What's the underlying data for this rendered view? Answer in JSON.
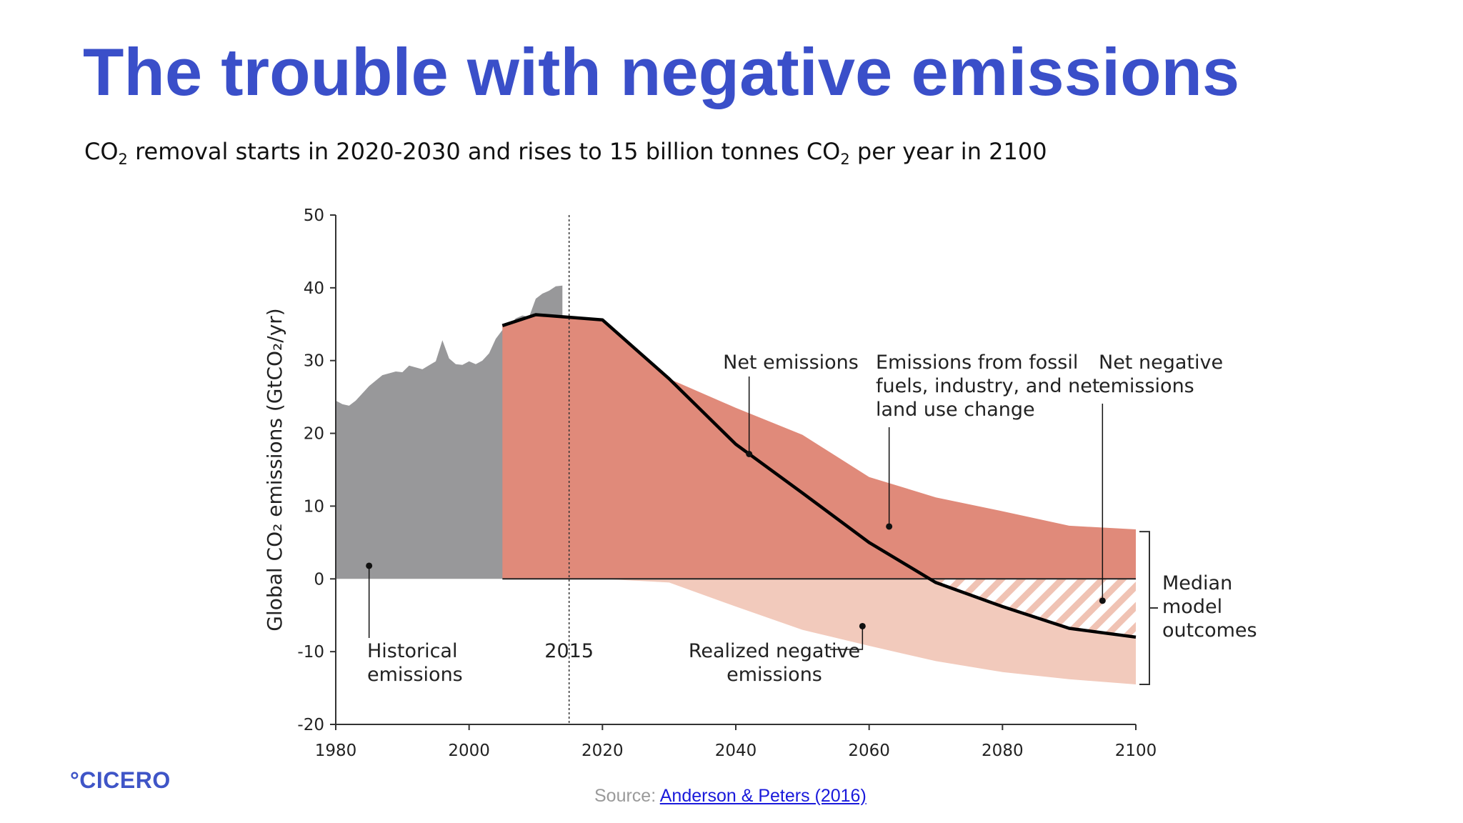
{
  "slide": {
    "title": "The trouble with negative emissions",
    "subtitle": {
      "part1": "CO",
      "sub1": "2",
      "part2": " removal starts in 2020-2030 and rises to 15 billion tonnes CO",
      "sub2": "2",
      "part3": " per year in 2100"
    }
  },
  "chart_data": {
    "type": "area",
    "title": "",
    "ylabel": "Global CO₂ emissions (GtCO₂/yr)",
    "xlabel": "",
    "xlim": [
      1980,
      2100
    ],
    "ylim": [
      -20,
      50
    ],
    "x_ticks": [
      "1980",
      "2000",
      "2020",
      "2040",
      "2060",
      "2080",
      "2100"
    ],
    "y_ticks": [
      "50",
      "40",
      "30",
      "20",
      "10",
      "0",
      "-10",
      "-20"
    ],
    "grid": false,
    "legend": "none",
    "colors": {
      "historical": "#98989a",
      "gross_positive": "#e08a7a",
      "negative": "#f2cabc",
      "net_line": "#000000",
      "hatch": "#f0c3b4"
    },
    "series": [
      {
        "name": "Historical emissions",
        "x": [
          1980,
          1981,
          1982,
          1983,
          1985,
          1987,
          1989,
          1990,
          1991,
          1993,
          1995,
          1996,
          1997,
          1998,
          1999,
          2000,
          2001,
          2002,
          2003,
          2004,
          2005,
          2006,
          2007,
          2008,
          2009,
          2010,
          2011,
          2012,
          2013,
          2014
        ],
        "y": [
          24.5,
          24.0,
          23.8,
          24.5,
          26.5,
          28.0,
          28.5,
          28.4,
          29.3,
          28.8,
          29.9,
          32.8,
          30.3,
          29.5,
          29.4,
          29.9,
          29.5,
          30.0,
          31.0,
          33.0,
          34.2,
          34.8,
          35.8,
          36.2,
          36.0,
          38.5,
          39.2,
          39.6,
          40.2,
          40.3
        ]
      },
      {
        "name": "Emissions from fossil fuels, industry, and net land use change",
        "x": [
          2005,
          2010,
          2020,
          2030,
          2040,
          2050,
          2060,
          2070,
          2080,
          2090,
          2100
        ],
        "y": [
          34.8,
          36.3,
          35.6,
          27.5,
          23.5,
          19.8,
          14.0,
          11.2,
          9.3,
          7.3,
          6.8
        ]
      },
      {
        "name": "Realized negative emissions",
        "x": [
          2020,
          2030,
          2040,
          2050,
          2060,
          2070,
          2080,
          2090,
          2100
        ],
        "y": [
          0,
          -0.5,
          -3.8,
          -7.0,
          -9.2,
          -11.3,
          -12.8,
          -13.8,
          -14.5
        ]
      },
      {
        "name": "Net emissions",
        "x": [
          2005,
          2010,
          2020,
          2030,
          2040,
          2050,
          2060,
          2070,
          2080,
          2090,
          2100
        ],
        "y": [
          34.8,
          36.3,
          35.6,
          27.5,
          18.5,
          11.8,
          5.0,
          -0.5,
          -3.8,
          -6.8,
          -8.0
        ]
      }
    ],
    "annotations": {
      "historical": [
        "Historical",
        "emissions"
      ],
      "year_2015": "2015",
      "net": "Net emissions",
      "fossil": [
        "Emissions from fossil",
        "fuels, industry, and net",
        "land use change"
      ],
      "net_negative": [
        "Net negative",
        "emissions"
      ],
      "realized": [
        "Realized negative",
        "emissions"
      ],
      "median": [
        "Median",
        "model",
        "outcomes"
      ]
    },
    "annotation_points": {
      "historical": [
        1985,
        1.8
      ],
      "net": [
        2042,
        18.3
      ],
      "fossil": [
        2063,
        7.2
      ],
      "net_negative": [
        2095,
        -3.0
      ],
      "realized": [
        2059,
        -6.5
      ]
    },
    "marker_year": 2015,
    "median_bracket_range": [
      -14.5,
      6.5
    ]
  },
  "footer": {
    "logo": "°CICERO",
    "source_prefix": "Source: ",
    "source_link": "Anderson & Peters (2016)"
  }
}
